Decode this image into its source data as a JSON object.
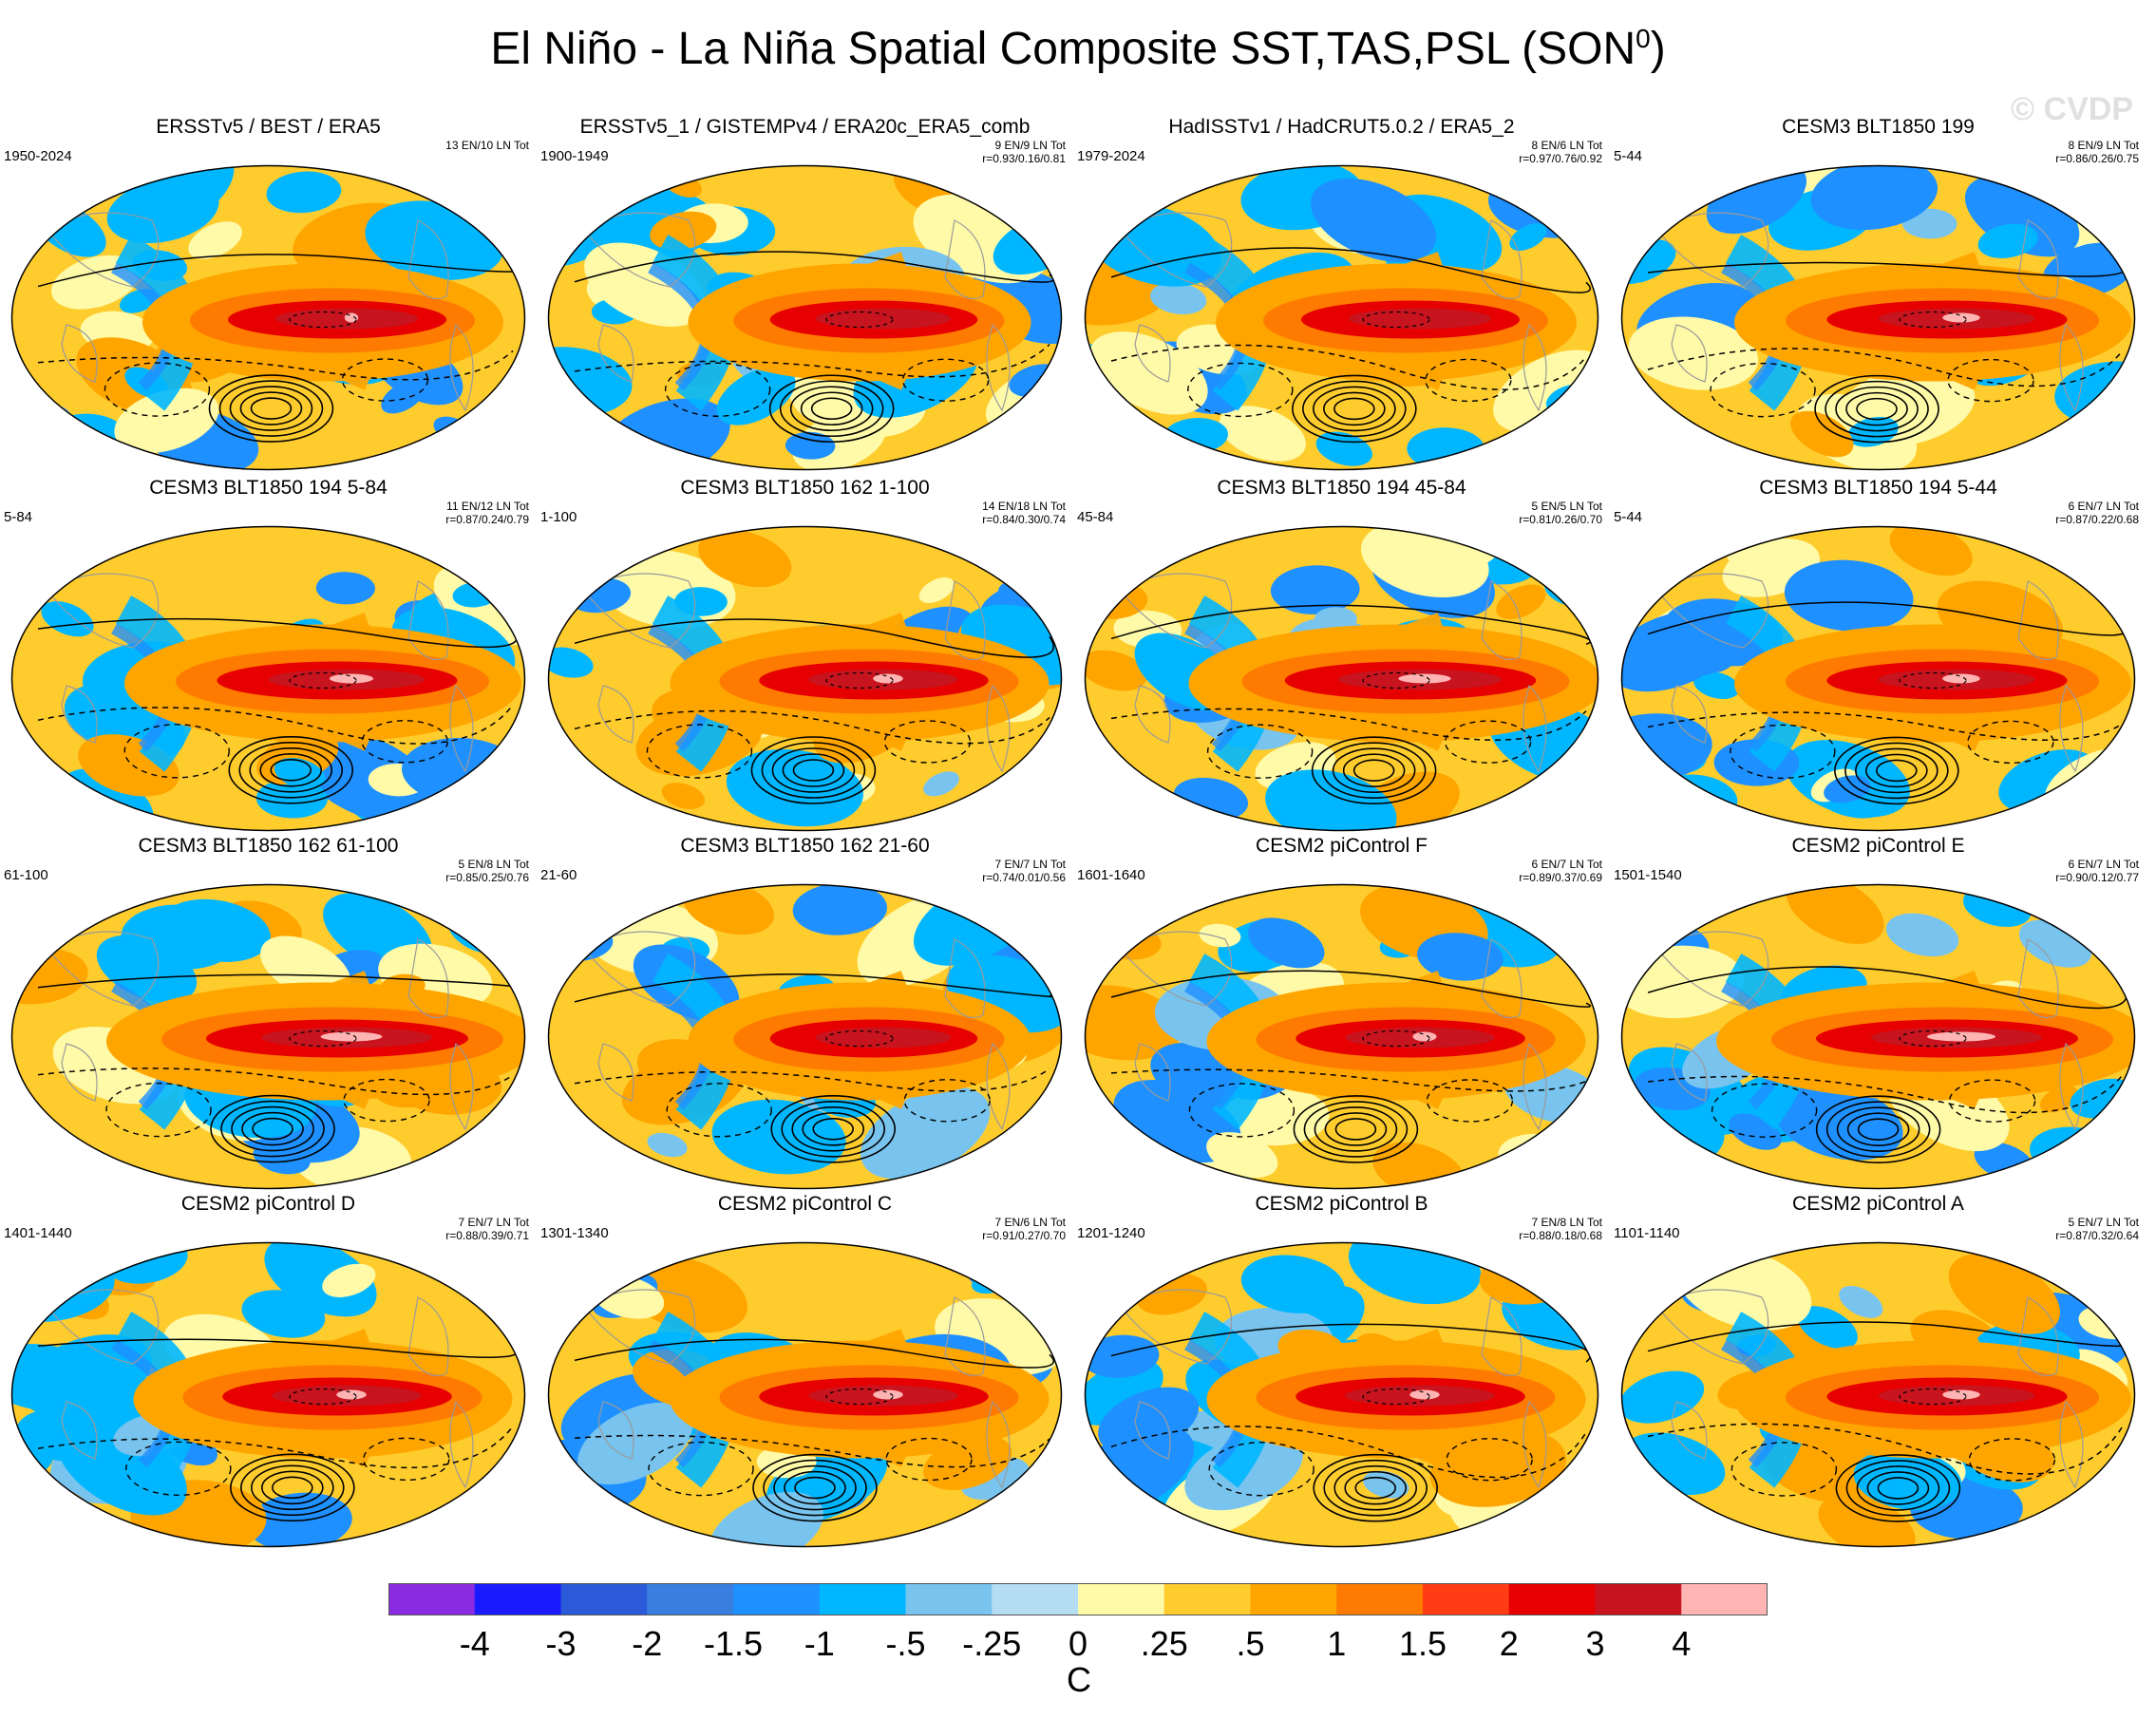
{
  "chart_data": {
    "type": "heatmap",
    "title": "El Niño - La Niña Spatial Composite SST,TAS,PSL (SON",
    "title_superscript": "0",
    "title_suffix": ")",
    "watermark": "© CVDP",
    "colorbar": {
      "units": "C",
      "levels": [
        "-4",
        "-3",
        "-2",
        "-1.5",
        "-1",
        "-.5",
        "-.25",
        "0",
        ".25",
        ".5",
        "1",
        "1.5",
        "2",
        "3",
        "4"
      ],
      "colors": [
        "#8a2be2",
        "#1a1aff",
        "#2a5ad8",
        "#3a7ee0",
        "#1e90ff",
        "#00b7ff",
        "#78c4ee",
        "#b4dcf2",
        "#fffaa8",
        "#ffcc2e",
        "#ffa500",
        "#ff7a00",
        "#ff3c14",
        "#e60000",
        "#c8141e",
        "#ffb4b4"
      ]
    },
    "panels": [
      {
        "title": "ERSSTv5 / BEST / ERA5",
        "years": "1950-2024",
        "counts": "13 EN/10 LN Tot",
        "stats": "",
        "strength": 1.0,
        "hot": 0.12
      },
      {
        "title": "ERSSTv5_1 / GISTEMPv4 / ERA20c_ERA5_comb",
        "years": "1900-1949",
        "counts": "9 EN/9 LN Tot",
        "stats": "r=0.93/0.16/0.81",
        "strength": 0.95,
        "hot": 0.05
      },
      {
        "title": "HadISSTv1 / HadCRUT5.0.2 / ERA5_2",
        "years": "1979-2024",
        "counts": "8 EN/6 LN Tot",
        "stats": "r=0.97/0.76/0.92",
        "strength": 1.0,
        "hot": 0.08
      },
      {
        "title": "CESM3 BLT1850 199",
        "years": "5-44",
        "counts": "8 EN/9 LN Tot",
        "stats": "r=0.86/0.26/0.75",
        "strength": 1.1,
        "hot": 0.3
      },
      {
        "title": "CESM3 BLT1850 194 5-84",
        "years": "5-84",
        "counts": "11 EN/12 LN Tot",
        "stats": "r=0.87/0.24/0.79",
        "strength": 1.1,
        "hot": 0.35
      },
      {
        "title": "CESM3 BLT1850 162 1-100",
        "years": "1-100",
        "counts": "14 EN/18 LN Tot",
        "stats": "r=0.84/0.30/0.74",
        "strength": 1.05,
        "hot": 0.25
      },
      {
        "title": "CESM3 BLT1850 194 45-84",
        "years": "45-84",
        "counts": "5 EN/5 LN Tot",
        "stats": "r=0.81/0.26/0.70",
        "strength": 1.15,
        "hot": 0.4
      },
      {
        "title": "CESM3 BLT1850 194 5-44",
        "years": "5-44",
        "counts": "6 EN/7 LN Tot",
        "stats": "r=0.87/0.22/0.68",
        "strength": 1.1,
        "hot": 0.3
      },
      {
        "title": "CESM3 BLT1850 162 61-100",
        "years": "61-100",
        "counts": "5 EN/8 LN Tot",
        "stats": "r=0.85/0.25/0.76",
        "strength": 1.2,
        "hot": 0.45
      },
      {
        "title": "CESM3 BLT1850 162 21-60",
        "years": "21-60",
        "counts": "7 EN/7 LN Tot",
        "stats": "r=0.74/0.01/0.56",
        "strength": 0.95,
        "hot": 0.05
      },
      {
        "title": "CESM2 piControl F",
        "years": "1601-1640",
        "counts": "6 EN/7 LN Tot",
        "stats": "r=0.89/0.37/0.69",
        "strength": 1.05,
        "hot": 0.2
      },
      {
        "title": "CESM2 piControl E",
        "years": "1501-1540",
        "counts": "6 EN/7 LN Tot",
        "stats": "r=0.90/0.12/0.77",
        "strength": 1.2,
        "hot": 0.5
      },
      {
        "title": "CESM2 piControl D",
        "years": "1401-1440",
        "counts": "7 EN/7 LN Tot",
        "stats": "r=0.88/0.39/0.71",
        "strength": 1.05,
        "hot": 0.25
      },
      {
        "title": "CESM2 piControl C",
        "years": "1301-1340",
        "counts": "7 EN/6 LN Tot",
        "stats": "r=0.91/0.27/0.70",
        "strength": 1.05,
        "hot": 0.25
      },
      {
        "title": "CESM2 piControl B",
        "years": "1201-1240",
        "counts": "7 EN/8 LN Tot",
        "stats": "r=0.88/0.18/0.68",
        "strength": 1.05,
        "hot": 0.25
      },
      {
        "title": "CESM2 piControl A",
        "years": "1101-1140",
        "counts": "5 EN/7 LN Tot",
        "stats": "r=0.87/0.32/0.64",
        "strength": 1.1,
        "hot": 0.3
      }
    ]
  }
}
